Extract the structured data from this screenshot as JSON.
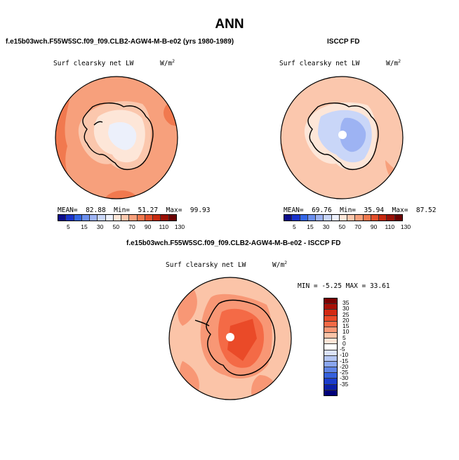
{
  "title": "ANN",
  "panels": [
    {
      "id": "model",
      "header": "f.e15b03wch.F55W5SC.f09_f09.CLB2-AGW4-M-B-e02 (yrs 1980-1989)",
      "variable": "Surf clearsky net LW",
      "units_base": "W/m",
      "units_exp": "2",
      "stats": {
        "mean_label": "MEAN=",
        "mean": "82.88",
        "min_label": "Min=",
        "min": "51.27",
        "max_label": "Max=",
        "max": "99.93"
      }
    },
    {
      "id": "obs",
      "header": "ISCCP FD",
      "variable": "Surf clearsky net LW",
      "units_base": "W/m",
      "units_exp": "2",
      "stats": {
        "mean_label": "MEAN=",
        "mean": "69.76",
        "min_label": "Min=",
        "min": "35.94",
        "max_label": "Max=",
        "max": "87.52"
      }
    },
    {
      "id": "diff",
      "header": "f.e15b03wch.F55W5SC.f09_f09.CLB2-AGW4-M-B-e02 - ISCCP FD",
      "variable": "Surf clearsky net LW",
      "units_base": "W/m",
      "units_exp": "2",
      "stats_text": "MIN =  -5.25 MAX =  33.61"
    }
  ],
  "field_colorbar": {
    "labels": [
      "5",
      "15",
      "30",
      "50",
      "70",
      "90",
      "110",
      "130"
    ],
    "colors": [
      "#0d0d8c",
      "#1a33cc",
      "#3366e6",
      "#6b8fee",
      "#9db3f3",
      "#c9d6f8",
      "#ecf0fb",
      "#fde6d8",
      "#fbc7ad",
      "#f7a07c",
      "#f1794f",
      "#e34f2b",
      "#c7290f",
      "#9a1005",
      "#6a0000"
    ]
  },
  "diff_colorbar": {
    "labels": [
      "35",
      "30",
      "25",
      "20",
      "15",
      "10",
      "5",
      "0",
      "-5",
      "-10",
      "-15",
      "-20",
      "-25",
      "-30",
      "-35"
    ],
    "colors": [
      "#7a0000",
      "#a80f05",
      "#d32a12",
      "#ea4a28",
      "#f46a46",
      "#f89775",
      "#fbc4a8",
      "#fde6d8",
      "#ffffff",
      "#dbe3fa",
      "#b4c6f4",
      "#8aa6ee",
      "#5f83e6",
      "#3560dc",
      "#1a3ccc",
      "#0a1fa8",
      "#00007a"
    ]
  }
}
